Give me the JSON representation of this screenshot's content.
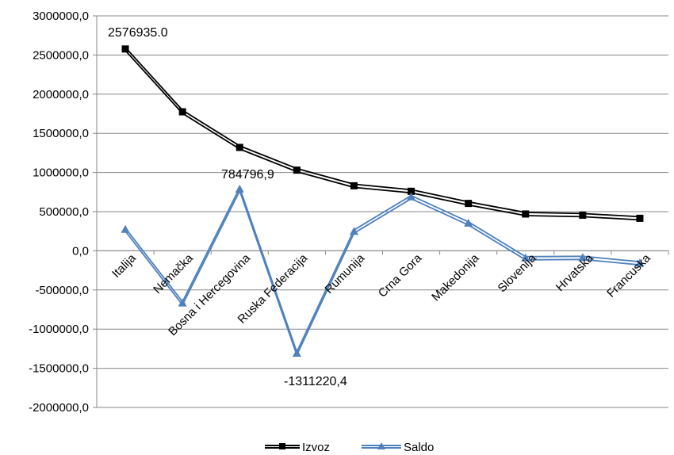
{
  "chart_data": {
    "type": "line",
    "categories": [
      "Italija",
      "Nemačka",
      "Bosna i Hercegovina",
      "Ruska Federacija",
      "Rumunija",
      "Crna Gora",
      "Makedonija",
      "Slovenija",
      "Hrvatska",
      "Francuska"
    ],
    "series": [
      {
        "name": "Izvoz",
        "color": "#000000",
        "marker": "square",
        "values": [
          2576935.0,
          1775000,
          1320000,
          1030000,
          830000,
          760000,
          605000,
          470000,
          455000,
          415000
        ]
      },
      {
        "name": "Saldo",
        "color": "#4f81bd",
        "marker": "triangle",
        "values": [
          270000,
          -670000,
          784796.9,
          -1311220.4,
          245000,
          685000,
          350000,
          -95000,
          -90000,
          -160000
        ]
      }
    ],
    "ylim": [
      -2000000,
      3000000
    ],
    "ytick_step": 500000,
    "yticks": [
      "3000000,0",
      "2500000,0",
      "2000000,0",
      "1500000,0",
      "1000000,0",
      "500000,0",
      "0,0",
      "-500000,0",
      "-1000000,0",
      "-1500000,0",
      "-2000000,0"
    ],
    "data_labels": [
      "2576935.0",
      "784796,9",
      "-1311220,4"
    ],
    "grid": true,
    "legend_position": "bottom"
  }
}
